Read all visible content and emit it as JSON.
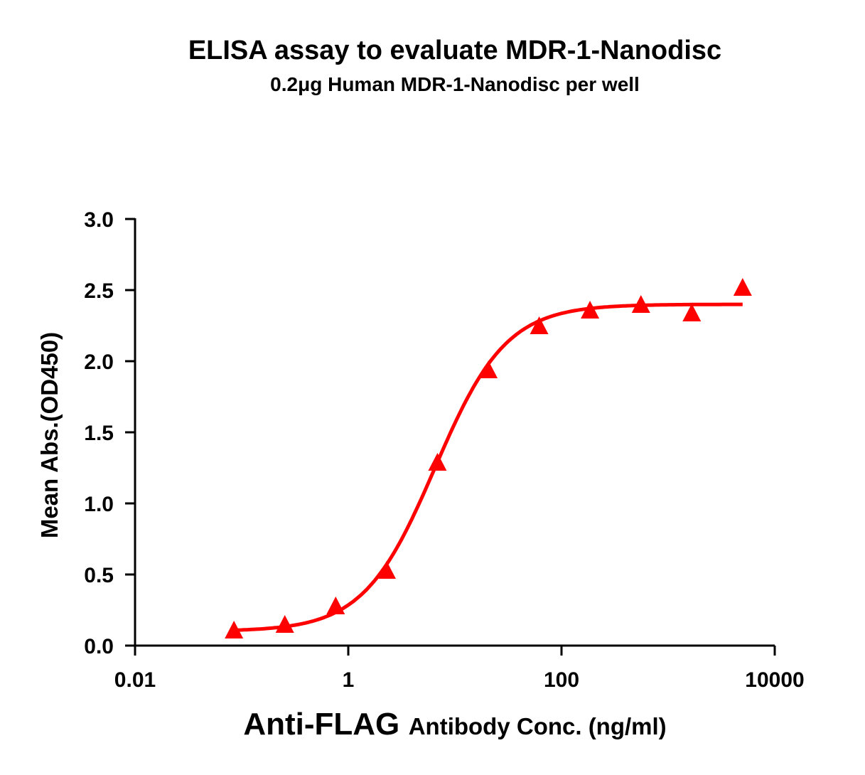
{
  "chart_data": {
    "type": "scatter",
    "title": "ELISA assay to evaluate MDR-1-Nanodisc",
    "subtitle": "0.2μg Human MDR-1-Nanodisc per well",
    "xlabel_main": "Anti-FLAG",
    "xlabel_rest": "Antibody Conc. (ng/ml)",
    "ylabel": "Mean Abs.(OD450)",
    "x_scale": "log",
    "xlim": [
      0.01,
      10000
    ],
    "ylim": [
      0,
      3.0
    ],
    "x_ticks": [
      "0.01",
      "1",
      "100",
      "10000"
    ],
    "y_ticks": [
      "0.0",
      "0.5",
      "1.0",
      "1.5",
      "2.0",
      "2.5",
      "3.0"
    ],
    "grid": false,
    "marker": "triangle",
    "fit": "sigmoidal curve",
    "color": "#ff0000",
    "series": [
      {
        "x": [
          0.0847,
          0.254,
          0.762,
          2.29,
          6.86,
          20.6,
          61.7,
          185,
          556,
          1667,
          5000
        ],
        "y": [
          0.1,
          0.14,
          0.27,
          0.52,
          1.28,
          1.93,
          2.24,
          2.35,
          2.39,
          2.33,
          2.51
        ]
      }
    ]
  }
}
